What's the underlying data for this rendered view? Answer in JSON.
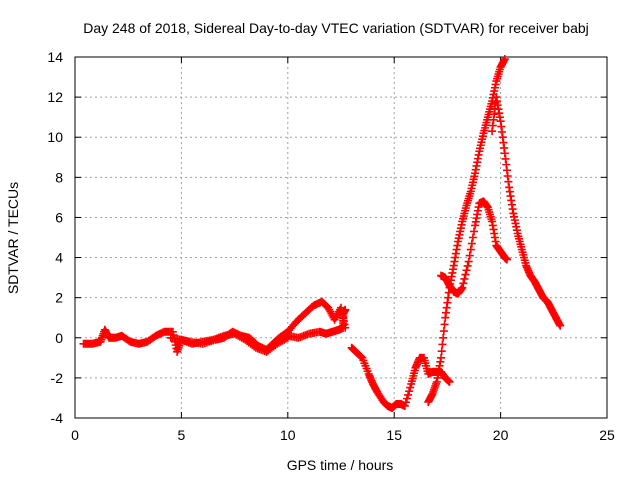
{
  "chart_data": {
    "type": "scatter",
    "title": "Day 248 of 2018, Sidereal Day-to-day VTEC variation (SDTVAR) for receiver babj",
    "xlabel": "GPS time / hours",
    "ylabel": "SDTVAR / TECUs",
    "xlim": [
      0,
      25
    ],
    "ylim": [
      -4,
      14
    ],
    "xticks": [
      "0",
      "5",
      "10",
      "15",
      "20",
      "25"
    ],
    "yticks": [
      "-4",
      "-2",
      "0",
      "2",
      "4",
      "6",
      "8",
      "10",
      "12",
      "14"
    ],
    "grid": true,
    "marker": "+",
    "color": "#ff0000",
    "series": [
      {
        "name": "SDTVAR",
        "x": [
          0.4,
          0.8,
          1.2,
          1.4,
          1.6,
          1.9,
          2.2,
          2.6,
          3.0,
          3.4,
          3.8,
          4.2,
          4.6,
          4.8,
          5.0,
          5.4,
          6.0,
          6.6,
          7.0,
          7.4,
          7.8,
          8.2,
          8.6,
          9.0,
          9.3,
          9.6,
          10.0,
          10.4,
          10.8,
          11.2,
          11.6,
          11.9,
          12.2,
          12.5,
          12.7,
          10.0,
          10.5,
          11.0,
          11.5,
          11.8,
          12.1,
          12.4,
          12.6,
          12.6,
          12.7,
          4.5,
          5.0,
          5.5,
          6.0,
          6.5,
          7.0,
          7.5,
          8.0,
          8.5,
          9.0,
          9.5,
          10.0,
          13.0,
          13.2,
          13.5,
          13.8,
          14.0,
          14.2,
          14.5,
          14.7,
          14.9,
          15.1,
          15.3,
          15.5,
          15.8,
          16.0,
          16.2,
          16.4,
          16.6,
          16.8,
          17.0,
          17.2,
          17.4,
          17.6,
          16.6,
          16.8,
          17.0,
          17.2,
          17.4,
          17.6,
          17.8,
          18.0,
          18.2,
          18.4,
          18.6,
          18.8,
          19.0,
          19.2,
          19.4,
          19.6,
          19.8,
          20.0,
          20.2,
          17.2,
          17.4,
          17.6,
          17.8,
          18.0,
          18.2,
          18.5,
          18.8,
          19.0,
          19.2,
          19.4,
          19.6,
          19.8,
          20.0,
          20.2,
          20.3,
          19.6,
          19.8,
          20.0,
          20.2,
          20.4,
          20.6,
          20.8,
          21.0,
          21.2,
          21.4,
          21.6,
          21.8,
          22.0,
          22.2,
          22.4,
          22.6,
          22.8
        ],
        "y": [
          -0.3,
          -0.3,
          -0.2,
          0.4,
          0.0,
          0.0,
          0.1,
          -0.2,
          -0.3,
          -0.2,
          0.1,
          0.3,
          0.3,
          -0.7,
          -0.1,
          -0.2,
          -0.3,
          -0.1,
          0.0,
          0.3,
          0.1,
          0.0,
          -0.4,
          -0.6,
          -0.3,
          0.0,
          0.3,
          0.8,
          1.2,
          1.6,
          1.8,
          1.5,
          0.9,
          1.5,
          0.5,
          0.1,
          0.0,
          0.2,
          0.3,
          0.2,
          0.3,
          0.4,
          0.5,
          1.2,
          1.4,
          0.0,
          -0.1,
          -0.3,
          -0.2,
          -0.1,
          0.1,
          0.2,
          -0.1,
          -0.5,
          -0.7,
          -0.3,
          0.0,
          -0.5,
          -0.7,
          -1.0,
          -1.8,
          -2.3,
          -2.7,
          -3.2,
          -3.4,
          -3.5,
          -3.3,
          -3.3,
          -3.4,
          -2.3,
          -1.5,
          -1.0,
          -1.0,
          -1.8,
          -1.7,
          -1.7,
          -1.7,
          -2.0,
          -2.2,
          -3.2,
          -2.8,
          -2.2,
          -1.0,
          1.0,
          2.5,
          3.6,
          4.8,
          5.8,
          6.6,
          7.3,
          8.2,
          9.3,
          10.2,
          11.0,
          11.8,
          12.8,
          13.5,
          13.9,
          3.1,
          3.0,
          2.6,
          2.3,
          2.2,
          2.5,
          3.8,
          5.6,
          6.7,
          6.8,
          6.5,
          5.8,
          4.6,
          4.3,
          4.0,
          3.9,
          10.3,
          12.0,
          10.8,
          9.2,
          7.5,
          6.2,
          5.2,
          4.4,
          3.6,
          3.1,
          2.8,
          2.4,
          2.0,
          1.8,
          1.4,
          1.0,
          0.6
        ]
      }
    ]
  }
}
